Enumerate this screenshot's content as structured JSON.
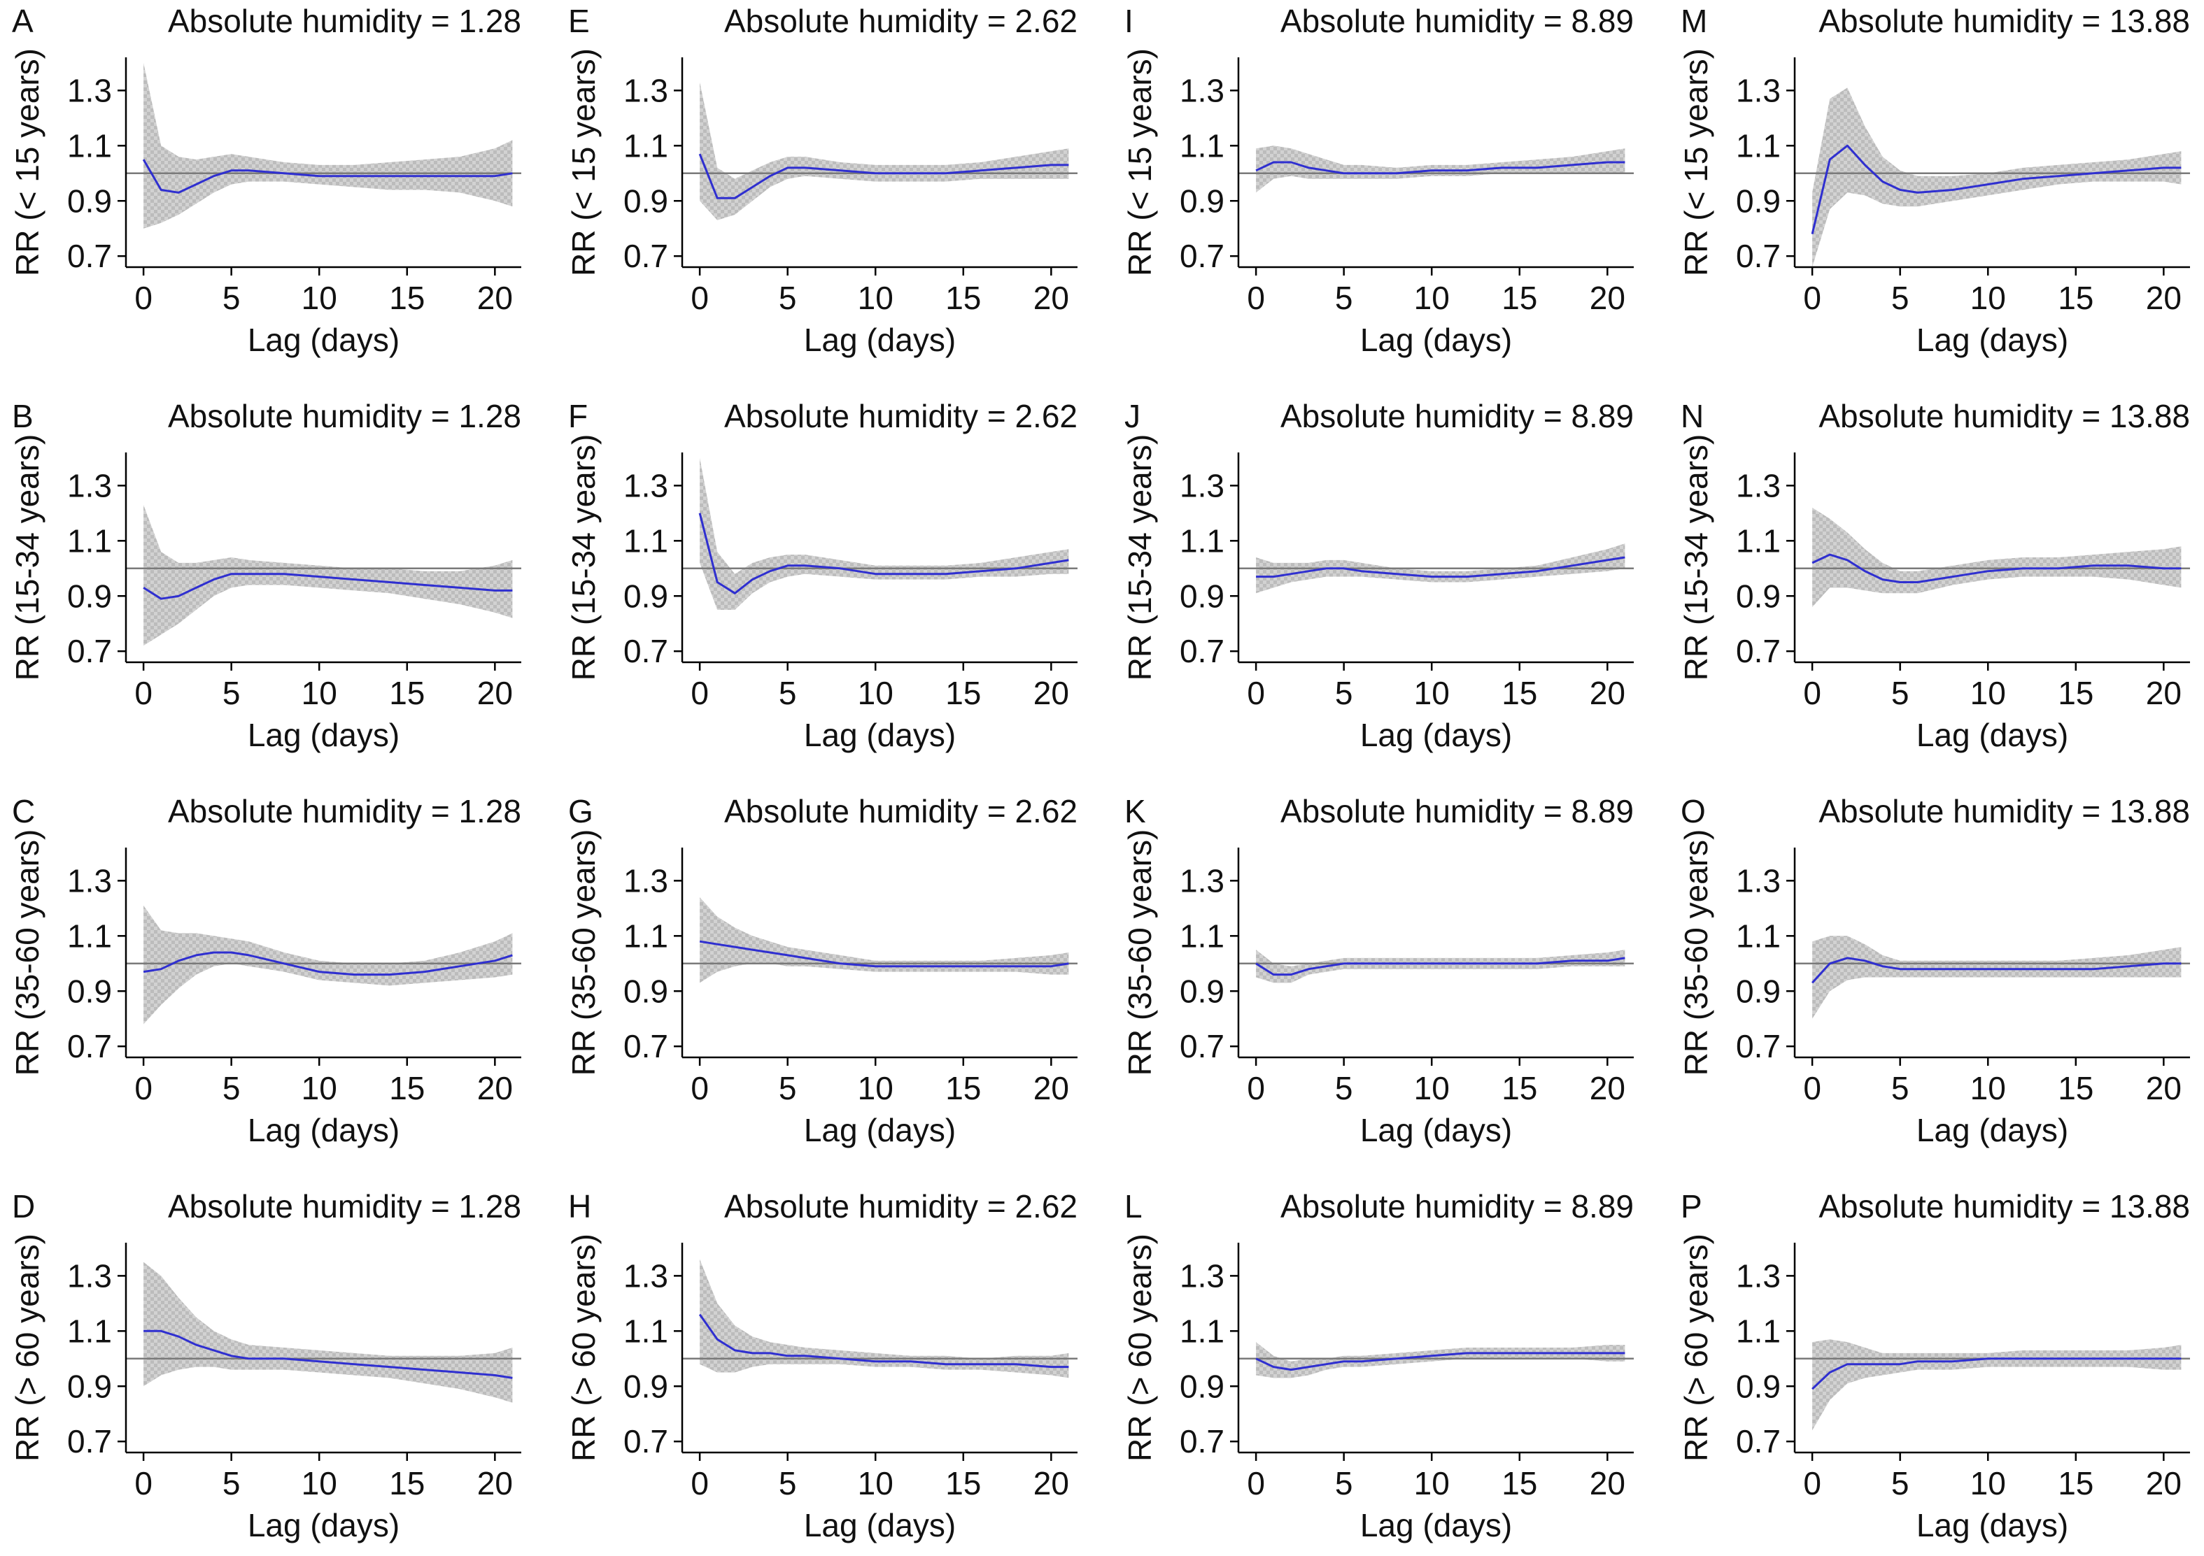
{
  "colors": {
    "line": "#2f2fd0",
    "band": "#c8c8c8",
    "reference": "#7a7a7a",
    "axis": "#000000"
  },
  "axes": {
    "xlabel": "Lag (days)",
    "xticks": [
      0,
      5,
      10,
      15,
      20
    ],
    "xlim": [
      -1,
      21.5
    ],
    "yticks": [
      "0.7",
      "0.9",
      "1.1",
      "1.3"
    ],
    "ylim": [
      0.66,
      1.42
    ],
    "reference_y": 1.0
  },
  "chart_data": [
    {
      "type": "line",
      "panel": "A",
      "title": "Absolute humidity = 1.28",
      "ylabel": "RR (< 15 years)",
      "x": [
        0,
        1,
        2,
        3,
        4,
        5,
        6,
        8,
        10,
        12,
        14,
        16,
        18,
        20,
        21
      ],
      "y": [
        1.05,
        0.94,
        0.93,
        0.96,
        0.99,
        1.01,
        1.01,
        1.0,
        0.99,
        0.99,
        0.99,
        0.99,
        0.99,
        0.99,
        1.0
      ],
      "lower": [
        0.8,
        0.82,
        0.85,
        0.89,
        0.93,
        0.96,
        0.97,
        0.97,
        0.96,
        0.95,
        0.94,
        0.94,
        0.93,
        0.9,
        0.88
      ],
      "upper": [
        1.4,
        1.1,
        1.06,
        1.05,
        1.06,
        1.07,
        1.06,
        1.04,
        1.03,
        1.03,
        1.04,
        1.05,
        1.06,
        1.09,
        1.12
      ]
    },
    {
      "type": "line",
      "panel": "B",
      "title": "Absolute humidity = 1.28",
      "ylabel": "RR (15-34 years)",
      "x": [
        0,
        1,
        2,
        3,
        4,
        5,
        6,
        8,
        10,
        12,
        14,
        16,
        18,
        20,
        21
      ],
      "y": [
        0.93,
        0.89,
        0.9,
        0.93,
        0.96,
        0.98,
        0.98,
        0.98,
        0.97,
        0.96,
        0.95,
        0.94,
        0.93,
        0.92,
        0.92
      ],
      "lower": [
        0.72,
        0.76,
        0.8,
        0.85,
        0.9,
        0.93,
        0.94,
        0.94,
        0.93,
        0.92,
        0.91,
        0.89,
        0.87,
        0.84,
        0.82
      ],
      "upper": [
        1.23,
        1.06,
        1.02,
        1.02,
        1.03,
        1.04,
        1.03,
        1.02,
        1.01,
        1.0,
        1.0,
        0.99,
        0.99,
        1.01,
        1.03
      ]
    },
    {
      "type": "line",
      "panel": "C",
      "title": "Absolute humidity = 1.28",
      "ylabel": "RR (35-60 years)",
      "x": [
        0,
        1,
        2,
        3,
        4,
        5,
        6,
        8,
        10,
        12,
        14,
        16,
        18,
        20,
        21
      ],
      "y": [
        0.97,
        0.98,
        1.01,
        1.03,
        1.04,
        1.04,
        1.03,
        1.0,
        0.97,
        0.96,
        0.96,
        0.97,
        0.99,
        1.01,
        1.03
      ],
      "lower": [
        0.78,
        0.85,
        0.91,
        0.96,
        0.99,
        1.0,
        0.99,
        0.97,
        0.94,
        0.93,
        0.92,
        0.93,
        0.94,
        0.95,
        0.96
      ],
      "upper": [
        1.21,
        1.12,
        1.11,
        1.11,
        1.1,
        1.09,
        1.08,
        1.04,
        1.01,
        1.0,
        1.0,
        1.01,
        1.04,
        1.08,
        1.11
      ]
    },
    {
      "type": "line",
      "panel": "D",
      "title": "Absolute humidity = 1.28",
      "ylabel": "RR (> 60 years)",
      "x": [
        0,
        1,
        2,
        3,
        4,
        5,
        6,
        8,
        10,
        12,
        14,
        16,
        18,
        20,
        21
      ],
      "y": [
        1.1,
        1.1,
        1.08,
        1.05,
        1.03,
        1.01,
        1.0,
        1.0,
        0.99,
        0.98,
        0.97,
        0.96,
        0.95,
        0.94,
        0.93
      ],
      "lower": [
        0.9,
        0.94,
        0.96,
        0.97,
        0.97,
        0.96,
        0.96,
        0.96,
        0.95,
        0.94,
        0.93,
        0.91,
        0.89,
        0.86,
        0.84
      ],
      "upper": [
        1.35,
        1.3,
        1.22,
        1.15,
        1.1,
        1.07,
        1.05,
        1.04,
        1.03,
        1.02,
        1.01,
        1.01,
        1.01,
        1.02,
        1.04
      ]
    },
    {
      "type": "line",
      "panel": "E",
      "title": "Absolute humidity = 2.62",
      "ylabel": "RR (< 15 years)",
      "x": [
        0,
        1,
        2,
        3,
        4,
        5,
        6,
        8,
        10,
        12,
        14,
        16,
        18,
        20,
        21
      ],
      "y": [
        1.07,
        0.91,
        0.91,
        0.95,
        0.99,
        1.02,
        1.02,
        1.01,
        1.0,
        1.0,
        1.0,
        1.01,
        1.02,
        1.03,
        1.03
      ],
      "lower": [
        0.9,
        0.83,
        0.85,
        0.9,
        0.95,
        0.98,
        0.99,
        0.98,
        0.97,
        0.97,
        0.97,
        0.98,
        0.98,
        0.98,
        0.98
      ],
      "upper": [
        1.33,
        1.02,
        0.98,
        1.01,
        1.04,
        1.06,
        1.06,
        1.04,
        1.03,
        1.03,
        1.03,
        1.04,
        1.06,
        1.08,
        1.09
      ]
    },
    {
      "type": "line",
      "panel": "F",
      "title": "Absolute humidity = 2.62",
      "ylabel": "RR (15-34 years)",
      "x": [
        0,
        1,
        2,
        3,
        4,
        5,
        6,
        8,
        10,
        12,
        14,
        16,
        18,
        20,
        21
      ],
      "y": [
        1.2,
        0.95,
        0.91,
        0.96,
        0.99,
        1.01,
        1.01,
        1.0,
        0.98,
        0.98,
        0.98,
        0.99,
        1.0,
        1.02,
        1.03
      ],
      "lower": [
        1.02,
        0.85,
        0.85,
        0.91,
        0.95,
        0.97,
        0.98,
        0.97,
        0.96,
        0.96,
        0.96,
        0.97,
        0.97,
        0.98,
        0.98
      ],
      "upper": [
        1.4,
        1.06,
        0.98,
        1.02,
        1.04,
        1.05,
        1.05,
        1.03,
        1.01,
        1.01,
        1.01,
        1.02,
        1.04,
        1.06,
        1.07
      ]
    },
    {
      "type": "line",
      "panel": "G",
      "title": "Absolute humidity = 2.62",
      "ylabel": "RR (35-60 years)",
      "x": [
        0,
        1,
        2,
        3,
        4,
        5,
        6,
        8,
        10,
        12,
        14,
        16,
        18,
        20,
        21
      ],
      "y": [
        1.08,
        1.07,
        1.06,
        1.05,
        1.04,
        1.03,
        1.02,
        1.0,
        0.99,
        0.99,
        0.99,
        0.99,
        0.99,
        0.99,
        1.0
      ],
      "lower": [
        0.93,
        0.97,
        0.99,
        1.0,
        1.0,
        0.99,
        0.99,
        0.98,
        0.97,
        0.97,
        0.97,
        0.97,
        0.97,
        0.96,
        0.96
      ],
      "upper": [
        1.24,
        1.17,
        1.13,
        1.1,
        1.08,
        1.06,
        1.05,
        1.03,
        1.01,
        1.01,
        1.01,
        1.01,
        1.02,
        1.03,
        1.04
      ]
    },
    {
      "type": "line",
      "panel": "H",
      "title": "Absolute humidity = 2.62",
      "ylabel": "RR (> 60 years)",
      "x": [
        0,
        1,
        2,
        3,
        4,
        5,
        6,
        8,
        10,
        12,
        14,
        16,
        18,
        20,
        21
      ],
      "y": [
        1.16,
        1.07,
        1.03,
        1.02,
        1.02,
        1.01,
        1.01,
        1.0,
        0.99,
        0.99,
        0.98,
        0.98,
        0.98,
        0.97,
        0.97
      ],
      "lower": [
        0.98,
        0.95,
        0.95,
        0.97,
        0.98,
        0.98,
        0.98,
        0.98,
        0.97,
        0.97,
        0.96,
        0.96,
        0.95,
        0.94,
        0.93
      ],
      "upper": [
        1.36,
        1.2,
        1.12,
        1.08,
        1.06,
        1.05,
        1.04,
        1.03,
        1.02,
        1.01,
        1.01,
        1.0,
        1.01,
        1.01,
        1.02
      ]
    },
    {
      "type": "line",
      "panel": "I",
      "title": "Absolute humidity = 8.89",
      "ylabel": "RR (< 15 years)",
      "x": [
        0,
        1,
        2,
        3,
        4,
        5,
        6,
        8,
        10,
        12,
        14,
        16,
        18,
        20,
        21
      ],
      "y": [
        1.01,
        1.04,
        1.04,
        1.02,
        1.01,
        1.0,
        1.0,
        1.0,
        1.01,
        1.01,
        1.02,
        1.02,
        1.03,
        1.04,
        1.04
      ],
      "lower": [
        0.93,
        0.98,
        0.99,
        0.98,
        0.98,
        0.98,
        0.98,
        0.98,
        0.99,
        0.99,
        1.0,
        1.0,
        1.0,
        1.0,
        1.0
      ],
      "upper": [
        1.09,
        1.1,
        1.09,
        1.07,
        1.05,
        1.03,
        1.03,
        1.02,
        1.03,
        1.03,
        1.04,
        1.05,
        1.06,
        1.08,
        1.09
      ]
    },
    {
      "type": "line",
      "panel": "J",
      "title": "Absolute humidity = 8.89",
      "ylabel": "RR (15-34 years)",
      "x": [
        0,
        1,
        2,
        3,
        4,
        5,
        6,
        8,
        10,
        12,
        14,
        16,
        18,
        20,
        21
      ],
      "y": [
        0.97,
        0.97,
        0.98,
        0.99,
        1.0,
        1.0,
        0.99,
        0.98,
        0.97,
        0.97,
        0.98,
        0.99,
        1.01,
        1.03,
        1.04
      ],
      "lower": [
        0.91,
        0.93,
        0.95,
        0.96,
        0.97,
        0.97,
        0.97,
        0.96,
        0.95,
        0.95,
        0.96,
        0.97,
        0.98,
        0.99,
        1.0
      ],
      "upper": [
        1.04,
        1.02,
        1.02,
        1.02,
        1.03,
        1.03,
        1.02,
        1.0,
        0.99,
        0.99,
        1.0,
        1.01,
        1.04,
        1.07,
        1.09
      ]
    },
    {
      "type": "line",
      "panel": "K",
      "title": "Absolute humidity = 8.89",
      "ylabel": "RR (35-60 years)",
      "x": [
        0,
        1,
        2,
        3,
        4,
        5,
        6,
        8,
        10,
        12,
        14,
        16,
        18,
        20,
        21
      ],
      "y": [
        1.0,
        0.96,
        0.96,
        0.98,
        0.99,
        1.0,
        1.0,
        1.0,
        1.0,
        1.0,
        1.0,
        1.0,
        1.01,
        1.01,
        1.02
      ],
      "lower": [
        0.95,
        0.93,
        0.93,
        0.96,
        0.97,
        0.98,
        0.98,
        0.98,
        0.98,
        0.98,
        0.98,
        0.98,
        0.99,
        0.99,
        0.99
      ],
      "upper": [
        1.05,
        1.0,
        0.99,
        1.0,
        1.01,
        1.02,
        1.02,
        1.02,
        1.02,
        1.02,
        1.02,
        1.02,
        1.03,
        1.04,
        1.05
      ]
    },
    {
      "type": "line",
      "panel": "L",
      "title": "Absolute humidity = 8.89",
      "ylabel": "RR (> 60 years)",
      "x": [
        0,
        1,
        2,
        3,
        4,
        5,
        6,
        8,
        10,
        12,
        14,
        16,
        18,
        20,
        21
      ],
      "y": [
        1.0,
        0.97,
        0.96,
        0.97,
        0.98,
        0.99,
        0.99,
        1.0,
        1.01,
        1.02,
        1.02,
        1.02,
        1.02,
        1.02,
        1.02
      ],
      "lower": [
        0.94,
        0.93,
        0.93,
        0.94,
        0.96,
        0.97,
        0.97,
        0.98,
        0.99,
        1.0,
        1.0,
        1.0,
        1.0,
        0.99,
        0.99
      ],
      "upper": [
        1.06,
        1.01,
        0.99,
        1.0,
        1.0,
        1.01,
        1.01,
        1.02,
        1.03,
        1.04,
        1.04,
        1.04,
        1.04,
        1.05,
        1.05
      ]
    },
    {
      "type": "line",
      "panel": "M",
      "title": "Absolute humidity = 13.88",
      "ylabel": "RR (< 15 years)",
      "x": [
        0,
        1,
        2,
        3,
        4,
        5,
        6,
        8,
        10,
        12,
        14,
        16,
        18,
        20,
        21
      ],
      "y": [
        0.78,
        1.05,
        1.1,
        1.03,
        0.97,
        0.94,
        0.93,
        0.94,
        0.96,
        0.98,
        0.99,
        1.0,
        1.01,
        1.02,
        1.02
      ],
      "lower": [
        0.66,
        0.87,
        0.93,
        0.92,
        0.89,
        0.88,
        0.88,
        0.9,
        0.92,
        0.94,
        0.96,
        0.97,
        0.97,
        0.97,
        0.96
      ],
      "upper": [
        0.93,
        1.27,
        1.31,
        1.17,
        1.06,
        1.01,
        0.99,
        0.99,
        1.0,
        1.02,
        1.03,
        1.04,
        1.05,
        1.07,
        1.08
      ]
    },
    {
      "type": "line",
      "panel": "N",
      "title": "Absolute humidity = 13.88",
      "ylabel": "RR (15-34 years)",
      "x": [
        0,
        1,
        2,
        3,
        4,
        5,
        6,
        8,
        10,
        12,
        14,
        16,
        18,
        20,
        21
      ],
      "y": [
        1.02,
        1.05,
        1.03,
        0.99,
        0.96,
        0.95,
        0.95,
        0.97,
        0.99,
        1.0,
        1.0,
        1.01,
        1.01,
        1.0,
        1.0
      ],
      "lower": [
        0.86,
        0.93,
        0.93,
        0.92,
        0.91,
        0.91,
        0.91,
        0.94,
        0.96,
        0.97,
        0.97,
        0.97,
        0.96,
        0.94,
        0.93
      ],
      "upper": [
        1.22,
        1.18,
        1.13,
        1.07,
        1.02,
        0.99,
        0.99,
        1.01,
        1.03,
        1.04,
        1.04,
        1.05,
        1.06,
        1.07,
        1.08
      ]
    },
    {
      "type": "line",
      "panel": "O",
      "title": "Absolute humidity = 13.88",
      "ylabel": "RR (35-60 years)",
      "x": [
        0,
        1,
        2,
        3,
        4,
        5,
        6,
        8,
        10,
        12,
        14,
        16,
        18,
        20,
        21
      ],
      "y": [
        0.93,
        1.0,
        1.02,
        1.01,
        0.99,
        0.98,
        0.98,
        0.98,
        0.98,
        0.98,
        0.98,
        0.98,
        0.99,
        1.0,
        1.0
      ],
      "lower": [
        0.8,
        0.9,
        0.94,
        0.95,
        0.95,
        0.95,
        0.95,
        0.95,
        0.95,
        0.95,
        0.95,
        0.95,
        0.95,
        0.95,
        0.95
      ],
      "upper": [
        1.08,
        1.1,
        1.1,
        1.07,
        1.03,
        1.01,
        1.01,
        1.01,
        1.01,
        1.01,
        1.01,
        1.02,
        1.03,
        1.05,
        1.06
      ]
    },
    {
      "type": "line",
      "panel": "P",
      "title": "Absolute humidity = 13.88",
      "ylabel": "RR (> 60 years)",
      "x": [
        0,
        1,
        2,
        3,
        4,
        5,
        6,
        8,
        10,
        12,
        14,
        16,
        18,
        20,
        21
      ],
      "y": [
        0.89,
        0.95,
        0.98,
        0.98,
        0.98,
        0.98,
        0.99,
        0.99,
        1.0,
        1.0,
        1.0,
        1.0,
        1.0,
        1.0,
        1.0
      ],
      "lower": [
        0.74,
        0.85,
        0.91,
        0.93,
        0.94,
        0.95,
        0.96,
        0.96,
        0.97,
        0.97,
        0.97,
        0.97,
        0.97,
        0.96,
        0.96
      ],
      "upper": [
        1.06,
        1.07,
        1.06,
        1.04,
        1.02,
        1.02,
        1.02,
        1.02,
        1.02,
        1.03,
        1.03,
        1.03,
        1.03,
        1.04,
        1.05
      ]
    }
  ]
}
